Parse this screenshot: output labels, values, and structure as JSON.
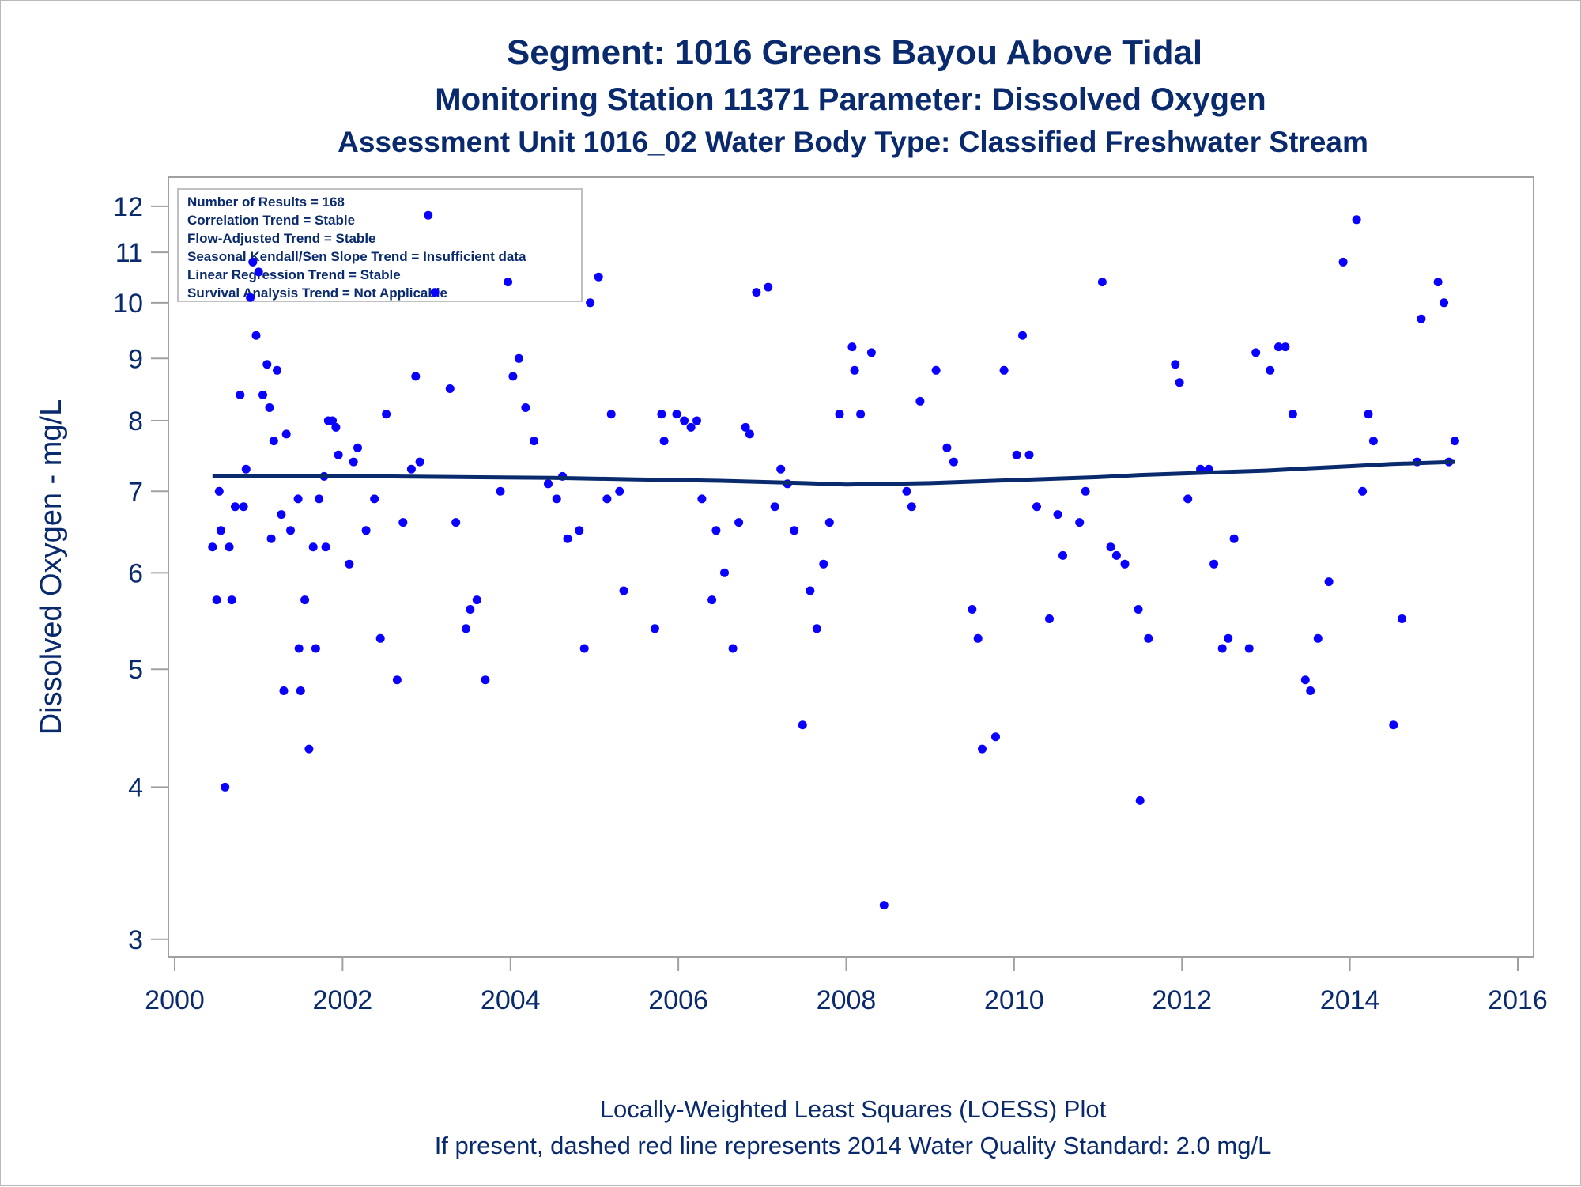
{
  "chart_data": {
    "type": "scatter",
    "title": "Segment: 1016  Greens Bayou Above Tidal",
    "subtitle": "Monitoring Station 11371 Parameter: Dissolved Oxygen",
    "subtitle2": "Assessment Unit 1016_02   Water Body Type: Classified Freshwater Stream",
    "xlabel": "",
    "ylabel": "Dissolved Oxygen - mg/L",
    "xlim": [
      2000,
      2016
    ],
    "ylim": [
      2.95,
      12.4
    ],
    "yscale": "log",
    "xticks": [
      "2000",
      "2002",
      "2004",
      "2006",
      "2008",
      "2010",
      "2012",
      "2014",
      "2016"
    ],
    "yticks": [
      "3",
      "4",
      "5",
      "6",
      "7",
      "8",
      "9",
      "10",
      "11",
      "12"
    ],
    "grid": false,
    "inset_stats": [
      "Number of Results = 168",
      "Correlation Trend = Stable",
      "Flow-Adjusted Trend = Stable",
      "Seasonal Kendall/Sen Slope Trend = Insufficient data",
      "Linear Regression Trend = Stable",
      "Survival Analysis Trend = Not Applicable"
    ],
    "inset_placement": "top-left",
    "footnotes": [
      "Locally-Weighted Least Squares (LOESS) Plot",
      "If present, dashed red line represents 2014 Water Quality Standard: 2.0 mg/L"
    ],
    "point_color": "#0a00ff",
    "line_color": "#0a2a6e",
    "series": [
      {
        "kind": "scatter",
        "points": [
          [
            2000.45,
            6.3
          ],
          [
            2000.5,
            5.7
          ],
          [
            2000.53,
            7.0
          ],
          [
            2000.55,
            6.5
          ],
          [
            2000.6,
            4.0
          ],
          [
            2000.65,
            6.3
          ],
          [
            2000.68,
            5.7
          ],
          [
            2000.72,
            6.8
          ],
          [
            2000.78,
            8.4
          ],
          [
            2000.82,
            6.8
          ],
          [
            2000.85,
            7.3
          ],
          [
            2000.9,
            10.1
          ],
          [
            2000.93,
            10.8
          ],
          [
            2000.97,
            9.4
          ],
          [
            2001.0,
            10.6
          ],
          [
            2001.05,
            8.4
          ],
          [
            2001.1,
            8.9
          ],
          [
            2001.13,
            8.2
          ],
          [
            2001.15,
            6.4
          ],
          [
            2001.18,
            7.7
          ],
          [
            2001.22,
            8.8
          ],
          [
            2001.27,
            6.7
          ],
          [
            2001.3,
            4.8
          ],
          [
            2001.33,
            7.8
          ],
          [
            2001.38,
            6.5
          ],
          [
            2001.47,
            6.9
          ],
          [
            2001.48,
            5.2
          ],
          [
            2001.5,
            4.8
          ],
          [
            2001.55,
            5.7
          ],
          [
            2001.6,
            4.3
          ],
          [
            2001.65,
            6.3
          ],
          [
            2001.68,
            5.2
          ],
          [
            2001.72,
            6.9
          ],
          [
            2001.78,
            7.2
          ],
          [
            2001.8,
            6.3
          ],
          [
            2001.83,
            8.0
          ],
          [
            2001.88,
            8.0
          ],
          [
            2001.92,
            7.9
          ],
          [
            2001.95,
            7.5
          ],
          [
            2002.08,
            6.1
          ],
          [
            2002.13,
            7.4
          ],
          [
            2002.18,
            7.6
          ],
          [
            2002.28,
            6.5
          ],
          [
            2002.38,
            6.9
          ],
          [
            2002.45,
            5.3
          ],
          [
            2002.52,
            8.1
          ],
          [
            2002.65,
            4.9
          ],
          [
            2002.72,
            6.6
          ],
          [
            2002.82,
            7.3
          ],
          [
            2002.87,
            8.7
          ],
          [
            2002.92,
            7.4
          ],
          [
            2003.02,
            11.8
          ],
          [
            2003.1,
            10.2
          ],
          [
            2003.28,
            8.5
          ],
          [
            2003.35,
            6.6
          ],
          [
            2003.47,
            5.4
          ],
          [
            2003.52,
            5.6
          ],
          [
            2003.6,
            5.7
          ],
          [
            2003.7,
            4.9
          ],
          [
            2003.88,
            7.0
          ],
          [
            2003.97,
            10.4
          ],
          [
            2004.03,
            8.7
          ],
          [
            2004.1,
            9.0
          ],
          [
            2004.18,
            8.2
          ],
          [
            2004.28,
            7.7
          ],
          [
            2004.45,
            7.1
          ],
          [
            2004.55,
            6.9
          ],
          [
            2004.62,
            7.2
          ],
          [
            2004.68,
            6.4
          ],
          [
            2004.82,
            6.5
          ],
          [
            2004.88,
            5.2
          ],
          [
            2004.95,
            10.0
          ],
          [
            2005.05,
            10.5
          ],
          [
            2005.15,
            6.9
          ],
          [
            2005.2,
            8.1
          ],
          [
            2005.3,
            7.0
          ],
          [
            2005.35,
            5.8
          ],
          [
            2005.72,
            5.4
          ],
          [
            2005.8,
            8.1
          ],
          [
            2005.83,
            7.7
          ],
          [
            2005.98,
            8.1
          ],
          [
            2006.07,
            8.0
          ],
          [
            2006.15,
            7.9
          ],
          [
            2006.22,
            8.0
          ],
          [
            2006.28,
            6.9
          ],
          [
            2006.4,
            5.7
          ],
          [
            2006.45,
            6.5
          ],
          [
            2006.55,
            6.0
          ],
          [
            2006.65,
            5.2
          ],
          [
            2006.72,
            6.6
          ],
          [
            2006.8,
            7.9
          ],
          [
            2006.85,
            7.8
          ],
          [
            2006.93,
            10.2
          ],
          [
            2007.07,
            10.3
          ],
          [
            2007.15,
            6.8
          ],
          [
            2007.22,
            7.3
          ],
          [
            2007.3,
            7.1
          ],
          [
            2007.38,
            6.5
          ],
          [
            2007.48,
            4.5
          ],
          [
            2007.57,
            5.8
          ],
          [
            2007.65,
            5.4
          ],
          [
            2007.73,
            6.1
          ],
          [
            2007.8,
            6.6
          ],
          [
            2007.92,
            8.1
          ],
          [
            2008.07,
            9.2
          ],
          [
            2008.1,
            8.8
          ],
          [
            2008.17,
            8.1
          ],
          [
            2008.3,
            9.1
          ],
          [
            2008.45,
            3.2
          ],
          [
            2008.72,
            7.0
          ],
          [
            2008.78,
            6.8
          ],
          [
            2008.88,
            8.3
          ],
          [
            2009.07,
            8.8
          ],
          [
            2009.2,
            7.6
          ],
          [
            2009.28,
            7.4
          ],
          [
            2009.5,
            5.6
          ],
          [
            2009.57,
            5.3
          ],
          [
            2009.62,
            4.3
          ],
          [
            2009.78,
            4.4
          ],
          [
            2009.88,
            8.8
          ],
          [
            2010.03,
            7.5
          ],
          [
            2010.1,
            9.4
          ],
          [
            2010.18,
            7.5
          ],
          [
            2010.27,
            6.8
          ],
          [
            2010.42,
            5.5
          ],
          [
            2010.52,
            6.7
          ],
          [
            2010.58,
            6.2
          ],
          [
            2010.78,
            6.6
          ],
          [
            2010.85,
            7.0
          ],
          [
            2011.05,
            10.4
          ],
          [
            2011.15,
            6.3
          ],
          [
            2011.22,
            6.2
          ],
          [
            2011.32,
            6.1
          ],
          [
            2011.48,
            5.6
          ],
          [
            2011.5,
            3.9
          ],
          [
            2011.6,
            5.3
          ],
          [
            2011.92,
            8.9
          ],
          [
            2011.97,
            8.6
          ],
          [
            2012.07,
            6.9
          ],
          [
            2012.22,
            7.3
          ],
          [
            2012.32,
            7.3
          ],
          [
            2012.38,
            6.1
          ],
          [
            2012.48,
            5.2
          ],
          [
            2012.55,
            5.3
          ],
          [
            2012.62,
            6.4
          ],
          [
            2012.8,
            5.2
          ],
          [
            2012.88,
            9.1
          ],
          [
            2013.05,
            8.8
          ],
          [
            2013.15,
            9.2
          ],
          [
            2013.23,
            9.2
          ],
          [
            2013.32,
            8.1
          ],
          [
            2013.47,
            4.9
          ],
          [
            2013.53,
            4.8
          ],
          [
            2013.62,
            5.3
          ],
          [
            2013.75,
            5.9
          ],
          [
            2013.92,
            10.8
          ],
          [
            2014.08,
            11.7
          ],
          [
            2014.15,
            7.0
          ],
          [
            2014.22,
            8.1
          ],
          [
            2014.28,
            7.7
          ],
          [
            2014.52,
            4.5
          ],
          [
            2014.62,
            5.5
          ],
          [
            2014.8,
            7.4
          ],
          [
            2014.85,
            9.7
          ],
          [
            2015.05,
            10.4
          ],
          [
            2015.12,
            10.0
          ],
          [
            2015.18,
            7.4
          ],
          [
            2015.25,
            7.7
          ]
        ]
      },
      {
        "kind": "line",
        "points": [
          [
            2000.45,
            7.2
          ],
          [
            2001.5,
            7.2
          ],
          [
            2002.5,
            7.2
          ],
          [
            2003.5,
            7.19
          ],
          [
            2004.5,
            7.18
          ],
          [
            2005.5,
            7.16
          ],
          [
            2006.5,
            7.14
          ],
          [
            2007.5,
            7.11
          ],
          [
            2008.0,
            7.09
          ],
          [
            2008.5,
            7.1
          ],
          [
            2009.0,
            7.11
          ],
          [
            2009.5,
            7.13
          ],
          [
            2010.0,
            7.15
          ],
          [
            2010.5,
            7.17
          ],
          [
            2011.0,
            7.19
          ],
          [
            2011.5,
            7.22
          ],
          [
            2012.0,
            7.24
          ],
          [
            2012.5,
            7.26
          ],
          [
            2013.0,
            7.28
          ],
          [
            2013.5,
            7.31
          ],
          [
            2014.0,
            7.34
          ],
          [
            2014.5,
            7.37
          ],
          [
            2015.0,
            7.39
          ],
          [
            2015.25,
            7.4
          ]
        ]
      }
    ]
  }
}
